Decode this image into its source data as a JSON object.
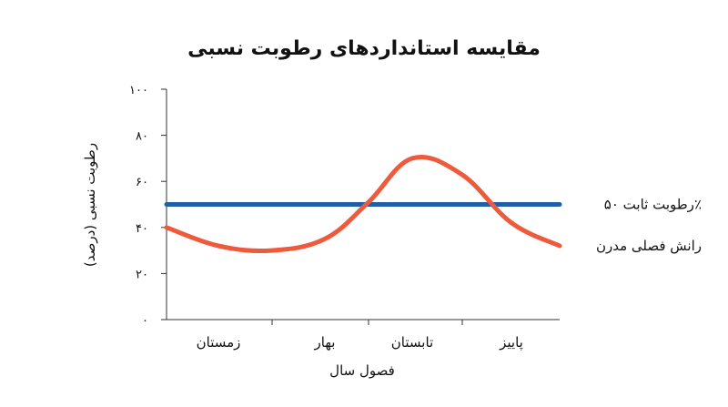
{
  "chart_data": {
    "type": "line",
    "title": "مقایسه استانداردهای رطوبت نسبی",
    "xlabel": "فصول سال",
    "ylabel": "رطوبت نسبی (درصد)",
    "ylim": [
      0,
      100
    ],
    "yticks": [
      0,
      20,
      40,
      60,
      80,
      100
    ],
    "ytick_labels": [
      "۰",
      "۲۰",
      "۴۰",
      "۶۰",
      "۸۰",
      "۱۰۰"
    ],
    "categories": [
      "زمستان",
      "بهار",
      "تابستان",
      "پاییز"
    ],
    "grid": false,
    "legend": "right, inline at line ends",
    "series": [
      {
        "name": "رطوبت ثابت ۵۰٪",
        "color": "#1f5fa8",
        "x": [
          0,
          4
        ],
        "values": [
          50,
          50
        ]
      },
      {
        "name": "رانش فصلی مدرن",
        "color": "#ee5a3c",
        "x": [
          0,
          0.5,
          1,
          1.5,
          2,
          2.5,
          3,
          3.5,
          4
        ],
        "values": [
          40,
          32,
          30,
          35,
          51,
          70,
          63,
          42,
          32
        ]
      }
    ]
  }
}
